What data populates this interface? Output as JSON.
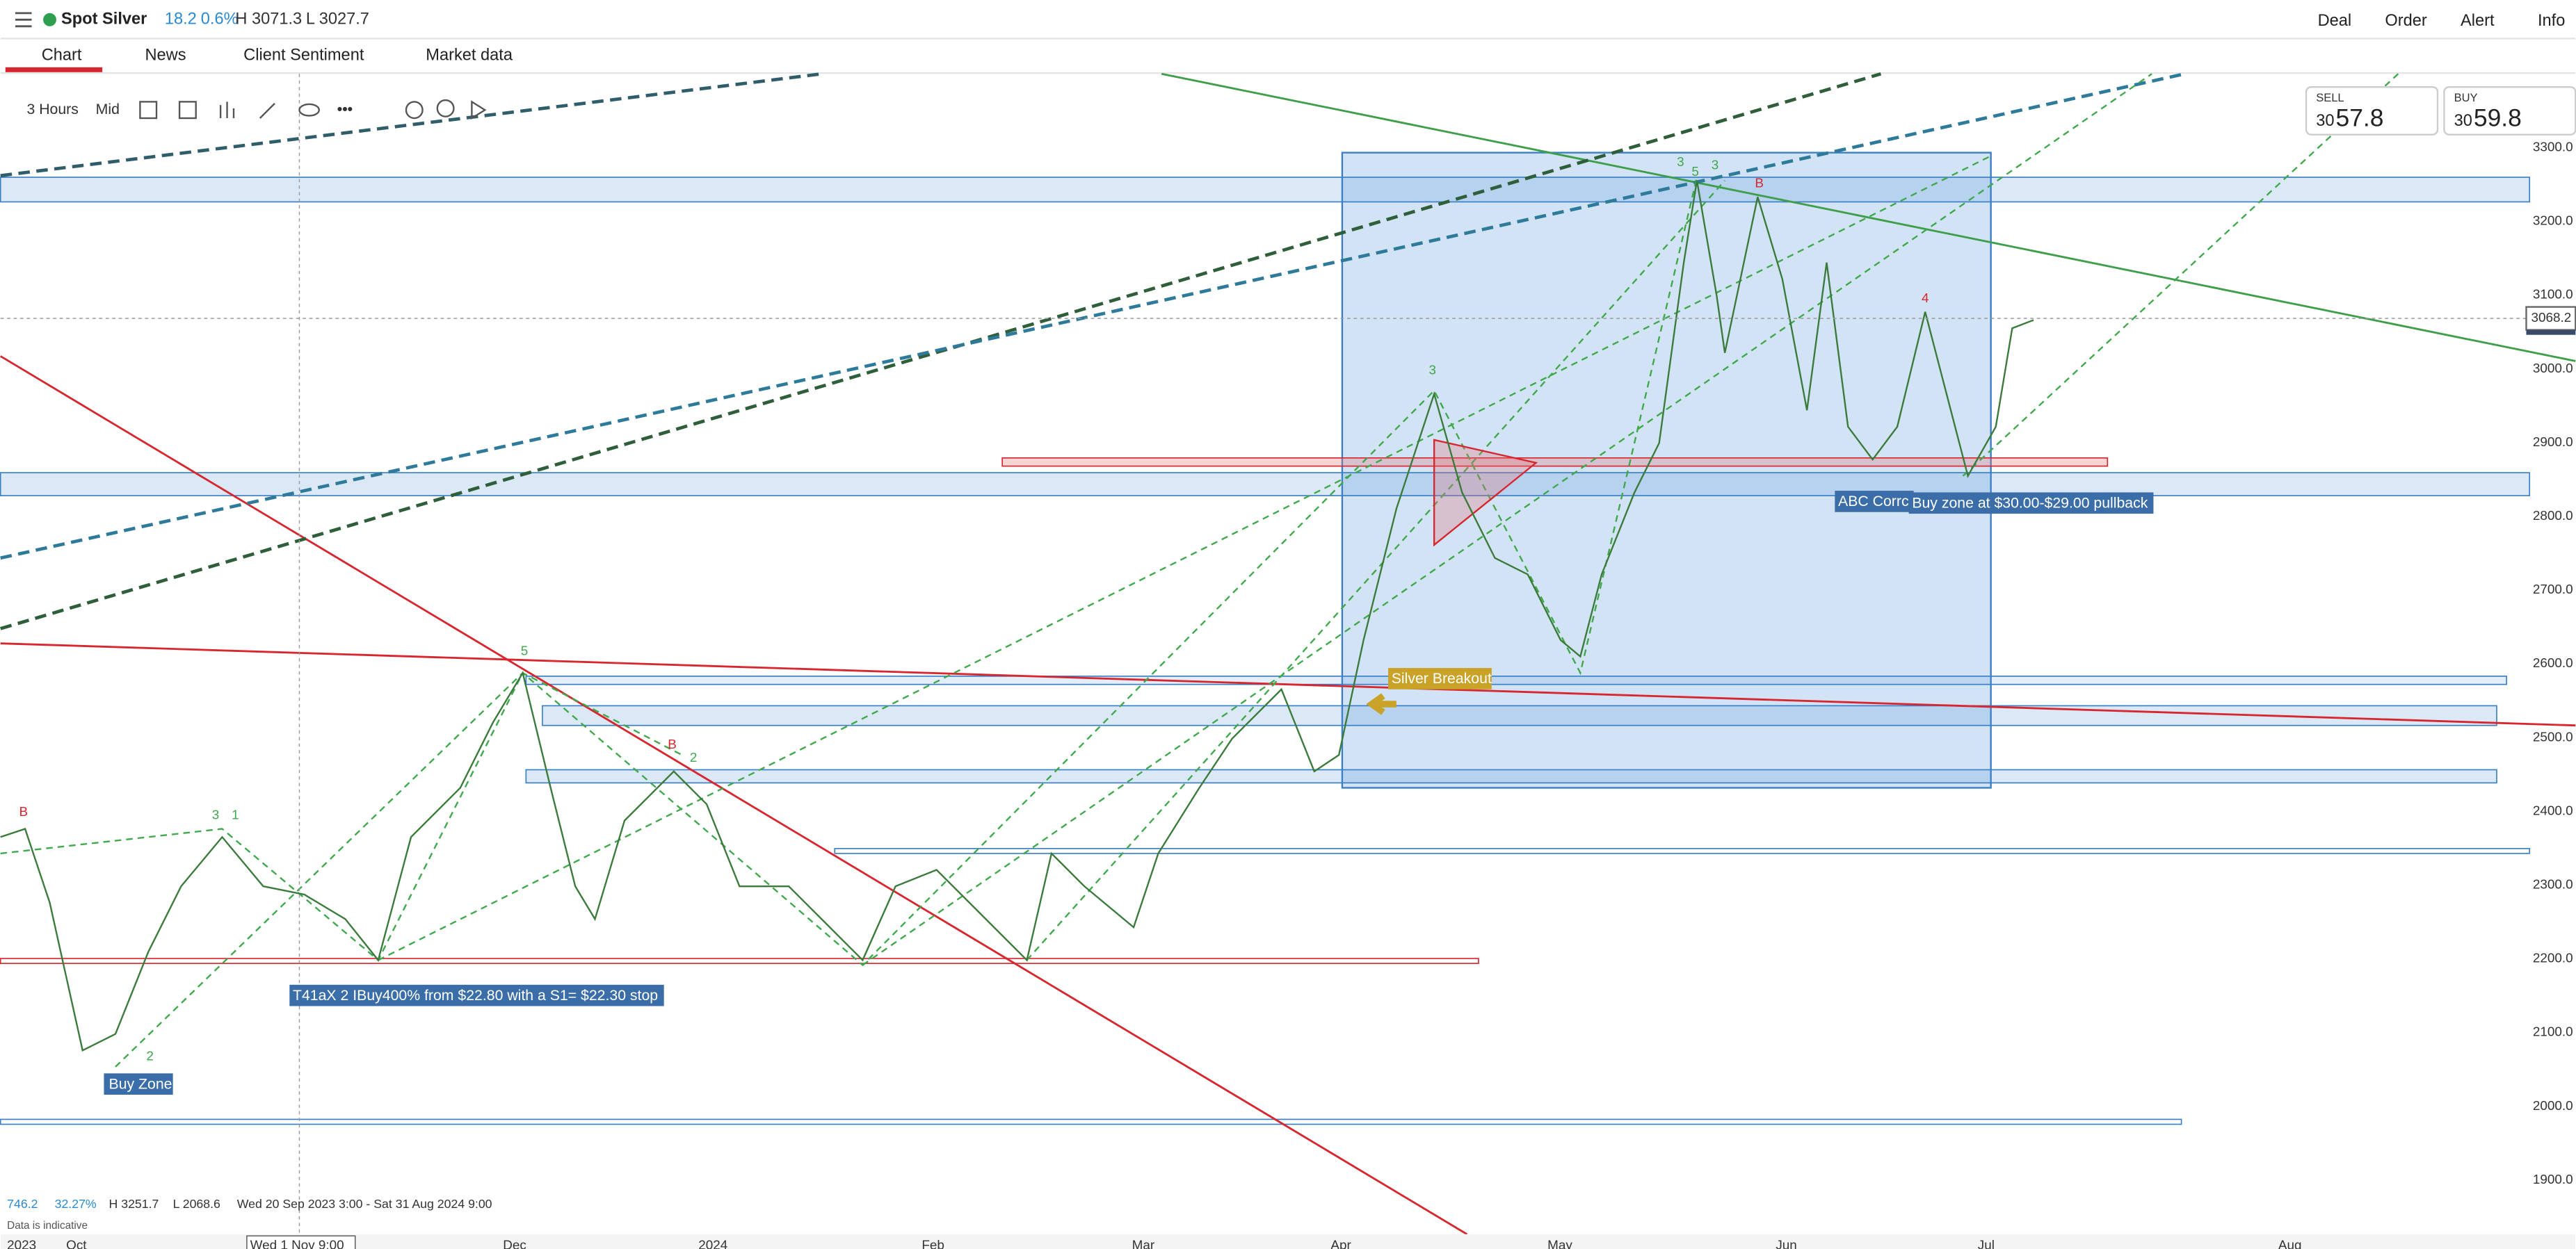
{
  "header": {
    "symbol": "Spot Silver",
    "change": "18.2",
    "change_pct": "0.6%",
    "high": "H 3071.3",
    "low": "L 3027.7",
    "actions": [
      "Deal",
      "Order",
      "Alert",
      "Info"
    ]
  },
  "tabs": [
    "Chart",
    "News",
    "Client Sentiment",
    "Market data"
  ],
  "toolbar": {
    "interval": "3 Hours",
    "price_type": "Mid"
  },
  "quote": {
    "sell": {
      "label": "SELL",
      "prefix": "30",
      "main": "57.8"
    },
    "buy": {
      "label": "BUY",
      "prefix": "30",
      "main": "59.8"
    },
    "current": "3068.2"
  },
  "price_axis": [
    "3300.0",
    "3200.0",
    "3100.0",
    "3000.0",
    "2900.0",
    "2800.0",
    "2700.0",
    "2600.0",
    "2500.0",
    "2400.0",
    "2300.0",
    "2200.0",
    "2100.0",
    "2000.0",
    "1900.0"
  ],
  "date_axis": [
    "2023",
    "Oct",
    "Wed 1 Nov 9:00",
    "Dec",
    "2024",
    "Feb",
    "Mar",
    "Apr",
    "May",
    "Jun",
    "Jul",
    "Aug"
  ],
  "annotations": {
    "buy_zone": "Buy Zone",
    "trade_note": "T41aX 2 IBuy400% from $22.80 with a S1= $22.30 stop",
    "breakout": "Silver Breakout",
    "abc": "ABC Corrc",
    "pullback": "Buy zone at $30.00-$29.00 pullback"
  },
  "wave_labels": [
    "B",
    "3",
    "1",
    "2",
    "5",
    "B",
    "2",
    "3",
    "3",
    "5",
    "3",
    "B",
    "4"
  ],
  "footer": {
    "range": "746.2",
    "range_pct": "32.27%",
    "high": "H 3251.7",
    "low": "L 2068.6",
    "period": "Wed 20 Sep 2023 3:00 - Sat 31 Aug 2024 9:00",
    "note": "Data is indicative"
  }
}
